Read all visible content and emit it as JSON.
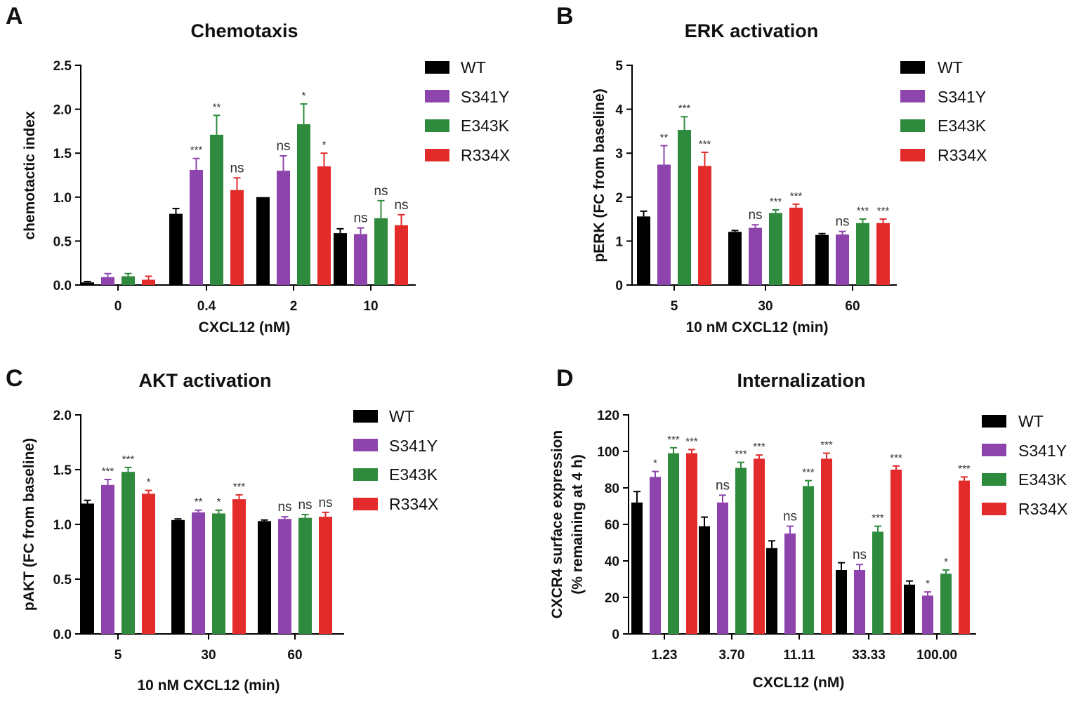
{
  "colors": {
    "WT": "#000000",
    "S341Y": "#8e44ad",
    "E343K": "#2e8b3e",
    "R334X": "#e32b2b"
  },
  "chart_data": [
    {
      "panel": "A",
      "type": "bar",
      "title": "Chemotaxis",
      "xlabel": "CXCL12 (nM)",
      "ylabel": "chemotactic index",
      "ylim": [
        0,
        2.5
      ],
      "yticks": [
        "0.0",
        "0.5",
        "1.0",
        "1.5",
        "2.0",
        "2.5"
      ],
      "categories": [
        "0",
        "0.4",
        "2",
        "10"
      ],
      "series": [
        {
          "name": "WT",
          "values": [
            0.03,
            0.81,
            1.0,
            0.59
          ],
          "errors": [
            0.01,
            0.06,
            0.0,
            0.05
          ],
          "sig": [
            "",
            "",
            "",
            ""
          ]
        },
        {
          "name": "S341Y",
          "values": [
            0.09,
            1.31,
            1.3,
            0.58
          ],
          "errors": [
            0.04,
            0.13,
            0.17,
            0.07
          ],
          "sig": [
            "",
            "***",
            "ns",
            "ns"
          ]
        },
        {
          "name": "E343K",
          "values": [
            0.1,
            1.71,
            1.83,
            0.76
          ],
          "errors": [
            0.03,
            0.22,
            0.23,
            0.2
          ],
          "sig": [
            "",
            "**",
            "*",
            "ns"
          ]
        },
        {
          "name": "R334X",
          "values": [
            0.06,
            1.08,
            1.35,
            0.68
          ],
          "errors": [
            0.04,
            0.14,
            0.15,
            0.12
          ],
          "sig": [
            "",
            "ns",
            "*",
            "ns"
          ]
        }
      ],
      "legend": [
        "WT",
        "S341Y",
        "E343K",
        "R334X"
      ]
    },
    {
      "panel": "B",
      "type": "bar",
      "title": "ERK activation",
      "xlabel": "10 nM CXCL12 (min)",
      "ylabel": "pERK (FC from baseline)",
      "ylim": [
        0,
        5
      ],
      "yticks": [
        "0",
        "1",
        "2",
        "3",
        "4",
        "5"
      ],
      "categories": [
        "5",
        "30",
        "60"
      ],
      "series": [
        {
          "name": "WT",
          "values": [
            1.56,
            1.21,
            1.14
          ],
          "errors": [
            0.12,
            0.03,
            0.03
          ],
          "sig": [
            "",
            "",
            ""
          ]
        },
        {
          "name": "S341Y",
          "values": [
            2.74,
            1.3,
            1.15
          ],
          "errors": [
            0.43,
            0.07,
            0.07
          ],
          "sig": [
            "**",
            "ns",
            "ns"
          ]
        },
        {
          "name": "E343K",
          "values": [
            3.53,
            1.64,
            1.41
          ],
          "errors": [
            0.3,
            0.07,
            0.09
          ],
          "sig": [
            "***",
            "***",
            "***"
          ]
        },
        {
          "name": "R334X",
          "values": [
            2.71,
            1.76,
            1.41
          ],
          "errors": [
            0.31,
            0.08,
            0.09
          ],
          "sig": [
            "***",
            "***",
            "***"
          ]
        }
      ],
      "legend": [
        "WT",
        "S341Y",
        "E343K",
        "R334X"
      ]
    },
    {
      "panel": "C",
      "type": "bar",
      "title": "AKT activation",
      "xlabel": "10 nM CXCL12 (min)",
      "ylabel": "pAKT (FC from baseline)",
      "ylim": [
        0,
        2.0
      ],
      "yticks": [
        "0.0",
        "0.5",
        "1.0",
        "1.5",
        "2.0"
      ],
      "categories": [
        "5",
        "30",
        "60"
      ],
      "series": [
        {
          "name": "WT",
          "values": [
            1.19,
            1.04,
            1.03
          ],
          "errors": [
            0.03,
            0.01,
            0.01
          ],
          "sig": [
            "",
            "",
            ""
          ]
        },
        {
          "name": "S341Y",
          "values": [
            1.36,
            1.11,
            1.05
          ],
          "errors": [
            0.05,
            0.02,
            0.02
          ],
          "sig": [
            "***",
            "**",
            "ns"
          ]
        },
        {
          "name": "E343K",
          "values": [
            1.48,
            1.1,
            1.06
          ],
          "errors": [
            0.04,
            0.03,
            0.03
          ],
          "sig": [
            "***",
            "*",
            "ns"
          ]
        },
        {
          "name": "R334X",
          "values": [
            1.28,
            1.23,
            1.07
          ],
          "errors": [
            0.03,
            0.04,
            0.04
          ],
          "sig": [
            "*",
            "***",
            "ns"
          ]
        }
      ],
      "legend": [
        "WT",
        "S341Y",
        "E343K",
        "R334X"
      ]
    },
    {
      "panel": "D",
      "type": "bar",
      "title": "Internalization",
      "xlabel": "CXCL12 (nM)",
      "ylabel_line1": "CXCR4 surface expression",
      "ylabel_line2": "(% remaining at 4 h)",
      "ylim": [
        0,
        120
      ],
      "yticks": [
        "0",
        "20",
        "40",
        "60",
        "80",
        "100",
        "120"
      ],
      "categories": [
        "1.23",
        "3.70",
        "11.11",
        "33.33",
        "100.00"
      ],
      "series": [
        {
          "name": "WT",
          "values": [
            72,
            59,
            47,
            35,
            27
          ],
          "errors": [
            6,
            5,
            4,
            4,
            2
          ],
          "sig": [
            "",
            "",
            "",
            "",
            ""
          ]
        },
        {
          "name": "S341Y",
          "values": [
            86,
            72,
            55,
            35,
            21
          ],
          "errors": [
            3,
            4,
            4,
            3,
            2
          ],
          "sig": [
            "*",
            "ns",
            "ns",
            "ns",
            "*"
          ]
        },
        {
          "name": "E343K",
          "values": [
            99,
            91,
            81,
            56,
            33
          ],
          "errors": [
            3,
            3,
            3,
            3,
            2
          ],
          "sig": [
            "***",
            "***",
            "***",
            "***",
            "*"
          ]
        },
        {
          "name": "R334X",
          "values": [
            99,
            96,
            96,
            90,
            84
          ],
          "errors": [
            2,
            2,
            3,
            2,
            2
          ],
          "sig": [
            "***",
            "***",
            "***",
            "***",
            "***"
          ]
        }
      ],
      "legend": [
        "WT",
        "S341Y",
        "E343K",
        "R334X"
      ]
    }
  ]
}
